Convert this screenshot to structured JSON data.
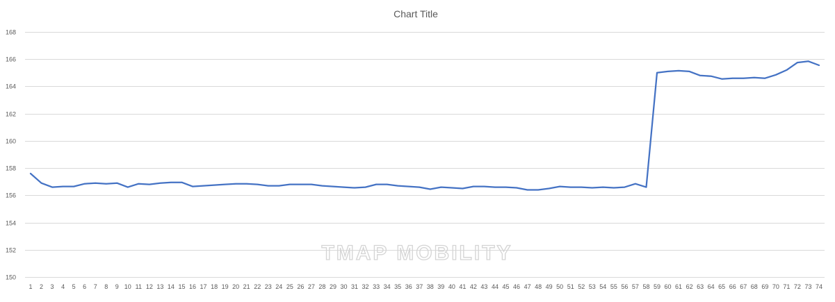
{
  "chart_data": {
    "type": "line",
    "title": "Chart Title",
    "xlabel": "",
    "ylabel": "",
    "ylim": [
      150,
      168
    ],
    "y_ticks": [
      150,
      152,
      154,
      156,
      158,
      160,
      162,
      164,
      166,
      168
    ],
    "grid": true,
    "legend": "none",
    "categories": [
      "1",
      "2",
      "3",
      "4",
      "5",
      "6",
      "7",
      "8",
      "9",
      "10",
      "11",
      "12",
      "13",
      "14",
      "15",
      "16",
      "17",
      "18",
      "19",
      "20",
      "21",
      "22",
      "23",
      "24",
      "25",
      "26",
      "27",
      "28",
      "29",
      "30",
      "31",
      "32",
      "33",
      "34",
      "35",
      "36",
      "37",
      "38",
      "39",
      "40",
      "41",
      "42",
      "43",
      "44",
      "45",
      "46",
      "47",
      "48",
      "49",
      "50",
      "51",
      "52",
      "53",
      "54",
      "55",
      "56",
      "57",
      "58",
      "59",
      "60",
      "61",
      "62",
      "63",
      "64",
      "65",
      "66",
      "67",
      "68",
      "69",
      "70",
      "71",
      "72",
      "73",
      "74"
    ],
    "series": [
      {
        "color": "#4472c4",
        "values": [
          157.6,
          156.9,
          156.6,
          156.65,
          156.65,
          156.85,
          156.9,
          156.85,
          156.9,
          156.6,
          156.85,
          156.8,
          156.9,
          156.95,
          156.95,
          156.65,
          156.7,
          156.75,
          156.8,
          156.85,
          156.85,
          156.8,
          156.7,
          156.7,
          156.8,
          156.8,
          156.8,
          156.7,
          156.65,
          156.6,
          156.55,
          156.6,
          156.8,
          156.8,
          156.7,
          156.65,
          156.6,
          156.45,
          156.6,
          156.55,
          156.5,
          156.65,
          156.65,
          156.6,
          156.6,
          156.55,
          156.4,
          156.4,
          156.5,
          156.65,
          156.6,
          156.6,
          156.55,
          156.6,
          156.55,
          156.6,
          156.85,
          156.6,
          165.0,
          165.1,
          165.15,
          165.1,
          164.8,
          164.75,
          164.55,
          164.6,
          164.6,
          164.65,
          164.6,
          164.85,
          165.2,
          165.75,
          165.85,
          165.55
        ]
      }
    ]
  },
  "watermark": "TMAP MOBILITY"
}
